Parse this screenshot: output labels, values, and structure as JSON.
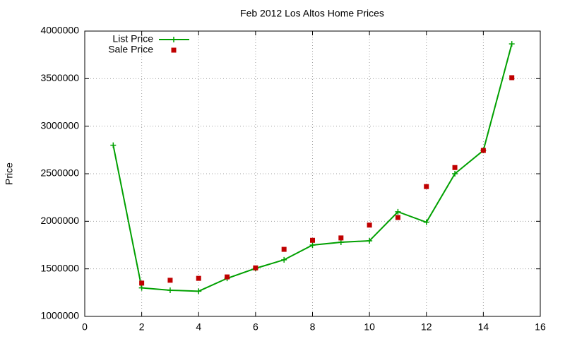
{
  "chart_data": {
    "type": "line",
    "title": "Feb 2012 Los Altos Home Prices",
    "y_label": "Price",
    "x": [
      1,
      2,
      3,
      4,
      5,
      6,
      7,
      8,
      9,
      10,
      11,
      12,
      13,
      14,
      15
    ],
    "series": [
      {
        "name": "List Price",
        "color": "#00a000",
        "style": "linespoints",
        "marker": "plus",
        "values": [
          2800000,
          1300000,
          1275000,
          1265000,
          1400000,
          1505000,
          1595000,
          1750000,
          1780000,
          1795000,
          2100000,
          1990000,
          2500000,
          2745000,
          3865000
        ]
      },
      {
        "name": "Sale Price",
        "color": "#c00000",
        "style": "points",
        "marker": "square",
        "values": [
          null,
          1350000,
          1380000,
          1400000,
          1415000,
          1510000,
          1705000,
          1800000,
          1825000,
          1960000,
          2040000,
          2365000,
          2565000,
          2745000,
          3510000
        ]
      }
    ],
    "xlim": [
      0,
      16
    ],
    "xticks": [
      0,
      2,
      4,
      6,
      8,
      10,
      12,
      14,
      16
    ],
    "ylim": [
      1000000,
      4000000
    ],
    "yticks": [
      1000000,
      1500000,
      2000000,
      2500000,
      3000000,
      3500000,
      4000000
    ],
    "grid": true,
    "legend": "top-left"
  }
}
